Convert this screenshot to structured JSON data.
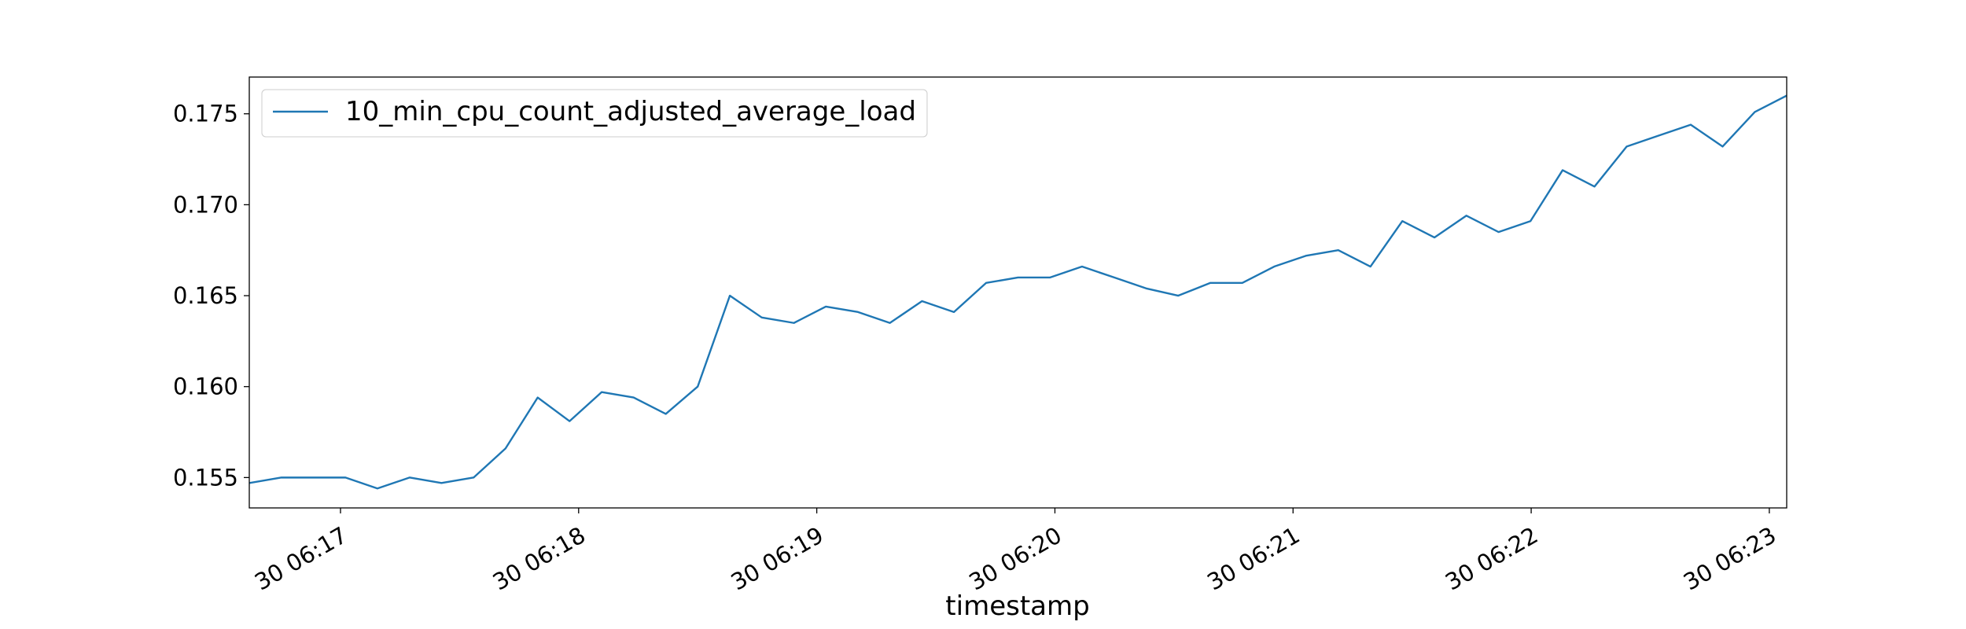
{
  "chart_data": {
    "type": "line",
    "x_label": "timestamp",
    "x": [
      16.617,
      16.752,
      16.886,
      17.021,
      17.155,
      17.29,
      17.424,
      17.559,
      17.693,
      17.828,
      17.962,
      18.097,
      18.231,
      18.366,
      18.5,
      18.635,
      18.769,
      18.904,
      19.038,
      19.173,
      19.307,
      19.442,
      19.576,
      19.711,
      19.845,
      19.98,
      20.114,
      20.249,
      20.383,
      20.518,
      20.652,
      20.787,
      20.921,
      21.056,
      21.19,
      21.325,
      21.459,
      21.594,
      21.728,
      21.863,
      21.997,
      22.132,
      22.266,
      22.401,
      22.535,
      22.67,
      22.804,
      22.939,
      23.073
    ],
    "series": [
      {
        "name": "10_min_cpu_count_adjusted_average_load",
        "color": "#1f77b4",
        "values": [
          0.1547,
          0.155,
          0.155,
          0.155,
          0.1544,
          0.155,
          0.1547,
          0.155,
          0.1566,
          0.1594,
          0.1581,
          0.1597,
          0.1594,
          0.1585,
          0.16,
          0.165,
          0.1638,
          0.1635,
          0.1644,
          0.1641,
          0.1635,
          0.1647,
          0.1641,
          0.1657,
          0.166,
          0.166,
          0.1666,
          0.166,
          0.1654,
          0.165,
          0.1657,
          0.1657,
          0.1666,
          0.1672,
          0.1675,
          0.1666,
          0.1691,
          0.1682,
          0.1694,
          0.1685,
          0.1691,
          0.1719,
          0.171,
          0.1732,
          0.1738,
          0.1744,
          0.1732,
          0.1751,
          0.176
        ]
      }
    ],
    "xlim": [
      16.617,
      23.073
    ],
    "xticks": [
      {
        "value": 17,
        "label": "30 06:17"
      },
      {
        "value": 18,
        "label": "30 06:18"
      },
      {
        "value": 19,
        "label": "30 06:19"
      },
      {
        "value": 20,
        "label": "30 06:20"
      },
      {
        "value": 21,
        "label": "30 06:21"
      },
      {
        "value": 22,
        "label": "30 06:22"
      },
      {
        "value": 23,
        "label": "30 06:23"
      }
    ],
    "ylim": [
      0.15333,
      0.17702
    ],
    "yticks": [
      0.155,
      {
        "value": 0.16,
        "label": "0.160"
      },
      0.165,
      {
        "value": 0.17,
        "label": "0.170"
      },
      0.175
    ],
    "grid": false,
    "legend": "upper left"
  }
}
